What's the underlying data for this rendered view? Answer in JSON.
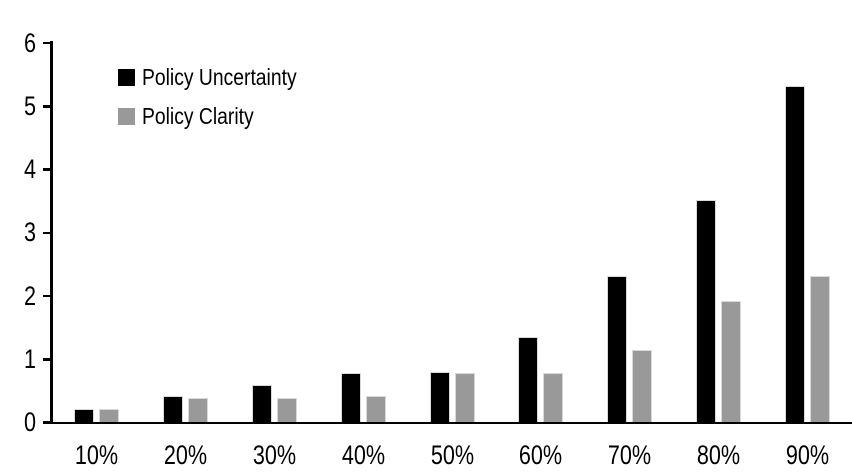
{
  "chart_data": {
    "type": "bar",
    "title": "",
    "xlabel": "",
    "ylabel": "",
    "categories": [
      "10%",
      "20%",
      "30%",
      "40%",
      "50%",
      "60%",
      "70%",
      "80%",
      "90%"
    ],
    "series": [
      {
        "name": "Policy Uncertainty",
        "color": "#000000",
        "values": [
          0.2,
          0.4,
          0.57,
          0.77,
          0.78,
          1.33,
          2.3,
          3.5,
          5.3
        ]
      },
      {
        "name": "Policy Clarity",
        "color": "#999999",
        "values": [
          0.2,
          0.38,
          0.38,
          0.4,
          0.77,
          0.77,
          1.13,
          1.9,
          2.3
        ]
      }
    ],
    "y_ticks": [
      0,
      1,
      2,
      3,
      4,
      5,
      6
    ],
    "ylim": [
      0,
      6
    ],
    "grid": false,
    "legend_position": "top-left-inside"
  },
  "colors": {
    "background": "#ffffff",
    "axis": "#000000",
    "text": "#000000",
    "bar_border": "#d9d9d9"
  }
}
